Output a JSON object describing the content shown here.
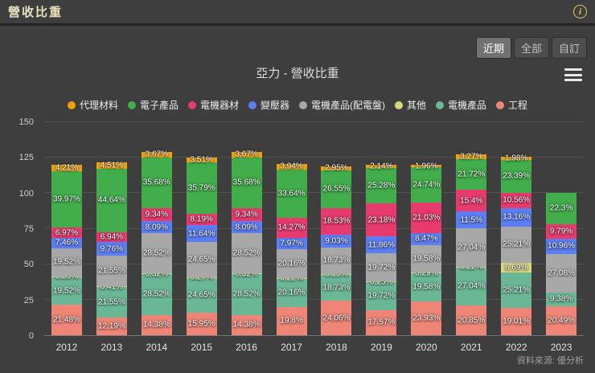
{
  "header": {
    "title": "營收比重",
    "info_glyph": "i"
  },
  "toolbar": {
    "buttons": [
      {
        "label": "近期",
        "active": true
      },
      {
        "label": "全部",
        "active": false
      },
      {
        "label": "自訂",
        "active": false
      }
    ]
  },
  "chart_data": {
    "type": "bar",
    "stacked": true,
    "title": "亞力 - 營收比重",
    "categories": [
      "2012",
      "2013",
      "2014",
      "2015",
      "2016",
      "2017",
      "2018",
      "2019",
      "2020",
      "2021",
      "2022",
      "2023"
    ],
    "y_ticks": [
      0,
      25,
      50,
      75,
      100,
      125,
      150
    ],
    "ylim": [
      0,
      150
    ],
    "unit": "%",
    "grid": true,
    "legend_position": "top",
    "legend_order": [
      "代理材料",
      "電子產品",
      "電機器材",
      "變壓器",
      "電機產品(配電盤)",
      "其他",
      "電機產品",
      "工程"
    ],
    "series": [
      {
        "name": "工程",
        "color": "#ee8577",
        "values": [
          21.48,
          12.19,
          14.38,
          15.95,
          14.38,
          19.8,
          24.06,
          17.57,
          23.93,
          20.85,
          19.01,
          20.49
        ]
      },
      {
        "name": "電機產品",
        "color": "#6ab795",
        "values": [
          19.52,
          21.55,
          28.52,
          24.65,
          28.52,
          20.16,
          18.73,
          19.72,
          19.58,
          27.04,
          25.21,
          9.38
        ]
      },
      {
        "name": "其他",
        "color": "#d9d87f",
        "values": [
          0.39,
          0.41,
          0.32,
          0.27,
          0.32,
          0.22,
          0.15,
          0.25,
          0.29,
          0.22,
          6.69,
          0
        ]
      },
      {
        "name": "電機產品(配電盤)",
        "color": "#a8a8a8",
        "values": [
          19.52,
          21.55,
          28.52,
          24.65,
          28.52,
          20.16,
          18.73,
          19.72,
          19.58,
          27.04,
          25.21,
          27.08
        ]
      },
      {
        "name": "變壓器",
        "color": "#5b7ef4",
        "values": [
          7.46,
          9.76,
          8.09,
          11.64,
          8.09,
          7.97,
          9.03,
          11.86,
          8.47,
          11.5,
          13.16,
          10.96
        ]
      },
      {
        "name": "電機器材",
        "color": "#e73a6e",
        "values": [
          6.97,
          6.94,
          9.34,
          8.19,
          9.34,
          14.27,
          18.53,
          23.18,
          21.03,
          15.4,
          10.56,
          9.79
        ]
      },
      {
        "name": "電子產品",
        "color": "#41ad4b",
        "values": [
          39.97,
          44.64,
          35.68,
          35.79,
          35.68,
          33.64,
          26.55,
          25.28,
          24.74,
          21.72,
          23.39,
          22.3
        ]
      },
      {
        "name": "代理材料",
        "color": "#f0a10c",
        "values": [
          4.21,
          4.51,
          3.67,
          3.51,
          3.67,
          3.94,
          2.95,
          2.14,
          1.96,
          3.27,
          1.98,
          0
        ]
      }
    ]
  },
  "footer": {
    "source": "資料來源: 優分析"
  }
}
